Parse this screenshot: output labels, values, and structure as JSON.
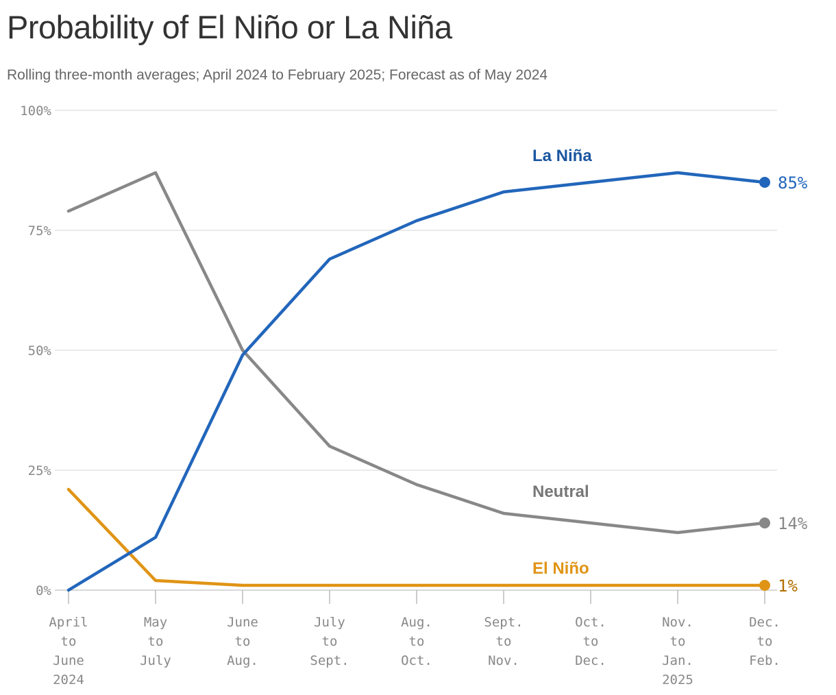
{
  "title": "Probability of El Niño or La Niña",
  "subtitle": "Rolling three-month averages; April 2024 to February 2025; Forecast as of May 2024",
  "chart_data": {
    "type": "line",
    "title": "Probability of El Niño or La Niña",
    "subtitle": "Rolling three-month averages; April 2024 to February 2025; Forecast as of May 2024",
    "ylim": [
      0,
      100
    ],
    "grid": true,
    "y_ticks": [
      "100%",
      "75%",
      "50%",
      "25%",
      "0%"
    ],
    "y_tick_values": [
      100,
      75,
      50,
      25,
      0
    ],
    "categories": [
      [
        "April",
        "to",
        "June",
        "2024"
      ],
      [
        "May",
        "to",
        "July"
      ],
      [
        "June",
        "to",
        "Aug."
      ],
      [
        "July",
        "to",
        "Sept."
      ],
      [
        "Aug.",
        "to",
        "Oct."
      ],
      [
        "Sept.",
        "to",
        "Nov."
      ],
      [
        "Oct.",
        "to",
        "Dec."
      ],
      [
        "Nov.",
        "to",
        "Jan.",
        "2025"
      ],
      [
        "Dec.",
        "to",
        "Feb."
      ]
    ],
    "series": [
      {
        "name": "La Niña",
        "color": "#2266bb",
        "values": [
          0,
          11,
          49,
          69,
          77,
          83,
          85,
          87,
          85
        ],
        "end_label": "85%"
      },
      {
        "name": "Neutral",
        "color": "#888888",
        "values": [
          79,
          87,
          50,
          30,
          22,
          16,
          14,
          12,
          14
        ],
        "end_label": "14%"
      },
      {
        "name": "El Niño",
        "color": "#e09415",
        "values": [
          21,
          2,
          1,
          1,
          1,
          1,
          1,
          1,
          1
        ],
        "end_label": "1%"
      }
    ]
  }
}
